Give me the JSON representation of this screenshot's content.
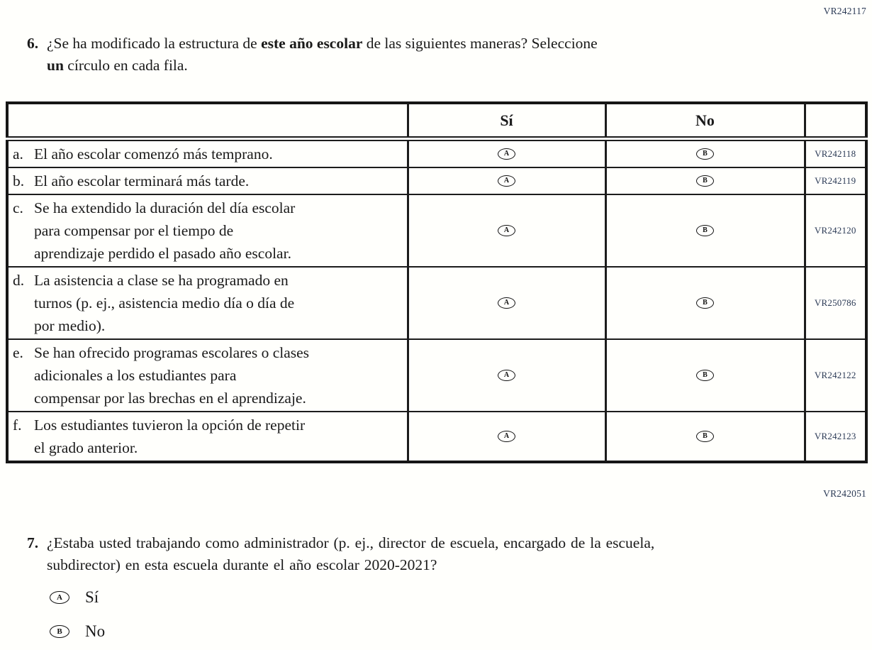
{
  "codes": {
    "top": "VR242117",
    "mid": "VR242051"
  },
  "question6": {
    "number": "6.",
    "line1_pre": "¿Se ha modificado la estructura de ",
    "line1_bold": "este año escolar",
    "line1_post": " de las siguientes maneras? Seleccione",
    "line2_bold": "un",
    "line2_post": " círculo en cada fila.",
    "table": {
      "header_si": "Sí",
      "header_no": "No",
      "bubble_yes": "A",
      "bubble_no": "B",
      "rows": [
        {
          "letter": "a.",
          "lines": [
            "El año escolar comenzó más temprano."
          ],
          "code": "VR242118"
        },
        {
          "letter": "b.",
          "lines": [
            "El año escolar terminará más tarde."
          ],
          "code": "VR242119"
        },
        {
          "letter": "c.",
          "lines": [
            "Se ha extendido la duración del día escolar",
            "para compensar por el tiempo de",
            "aprendizaje perdido el pasado año escolar."
          ],
          "code": "VR242120"
        },
        {
          "letter": "d.",
          "lines": [
            "La asistencia a clase se ha programado en",
            "turnos (p. ej., asistencia medio día o día de",
            "por medio)."
          ],
          "code": "VR250786"
        },
        {
          "letter": "e.",
          "lines": [
            "Se han ofrecido programas escolares o clases",
            "adicionales a los estudiantes para",
            "compensar por las brechas en el aprendizaje."
          ],
          "code": "VR242122"
        },
        {
          "letter": "f.",
          "lines": [
            "Los estudiantes tuvieron la opción de repetir",
            "el grado anterior."
          ],
          "code": "VR242123"
        }
      ]
    }
  },
  "question7": {
    "number": "7.",
    "lines": [
      "¿Estaba usted trabajando como administrador (p. ej., director de escuela, encargado de la escuela,",
      "subdirector) en esta escuela durante el año escolar 2020-2021?"
    ],
    "options": [
      {
        "bubble": "A",
        "label": "Sí"
      },
      {
        "bubble": "B",
        "label": "No"
      }
    ]
  },
  "colors": {
    "code_text": "#2b3a55",
    "body_text": "#1a1a1a",
    "table_border": "#1c1c1c"
  }
}
